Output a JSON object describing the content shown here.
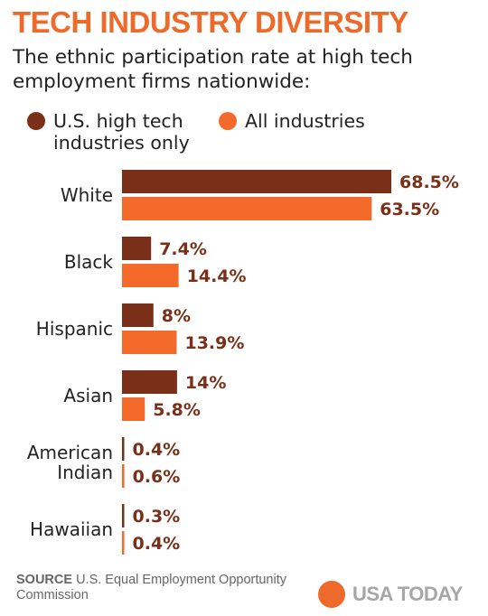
{
  "header": {
    "title": "TECH INDUSTRY DIVERSITY",
    "subtitle": "The ethnic participation rate at high tech employment firms nationwide:"
  },
  "colors": {
    "accent": "#ee6a2a",
    "tech": "#7a2f18",
    "all": "#f46a2b",
    "logo_text": "#a6a6a6"
  },
  "chart_data": {
    "type": "bar",
    "orientation": "horizontal",
    "title": "TECH INDUSTRY DIVERSITY",
    "subtitle": "The ethnic participation rate at high tech employment firms nationwide:",
    "categories": [
      [
        "White"
      ],
      [
        "Black"
      ],
      [
        "Hispanic"
      ],
      [
        "Asian"
      ],
      [
        "American",
        "Indian"
      ],
      [
        "Hawaiian"
      ]
    ],
    "series": [
      {
        "name": "U.S. high tech industries only",
        "color": "#7a2f18",
        "values": [
          68.5,
          7.4,
          8,
          14,
          0.4,
          0.3
        ],
        "labels": [
          "68.5%",
          "7.4%",
          "8%",
          "14%",
          "0.4%",
          "0.3%"
        ]
      },
      {
        "name": "All industries",
        "color": "#f46a2b",
        "values": [
          63.5,
          14.4,
          13.9,
          5.8,
          0.6,
          0.4
        ],
        "labels": [
          "63.5%",
          "14.4%",
          "13.9%",
          "5.8%",
          "0.6%",
          "0.4%"
        ]
      }
    ],
    "legend_position": "top",
    "grid": false,
    "axis_visible": false,
    "xlim": [
      0,
      70
    ],
    "unit": "%"
  },
  "footer": {
    "source_label": "SOURCE",
    "source_text": "U.S. Equal Employment Opportunity Commission",
    "logo_text": "USA TODAY"
  }
}
